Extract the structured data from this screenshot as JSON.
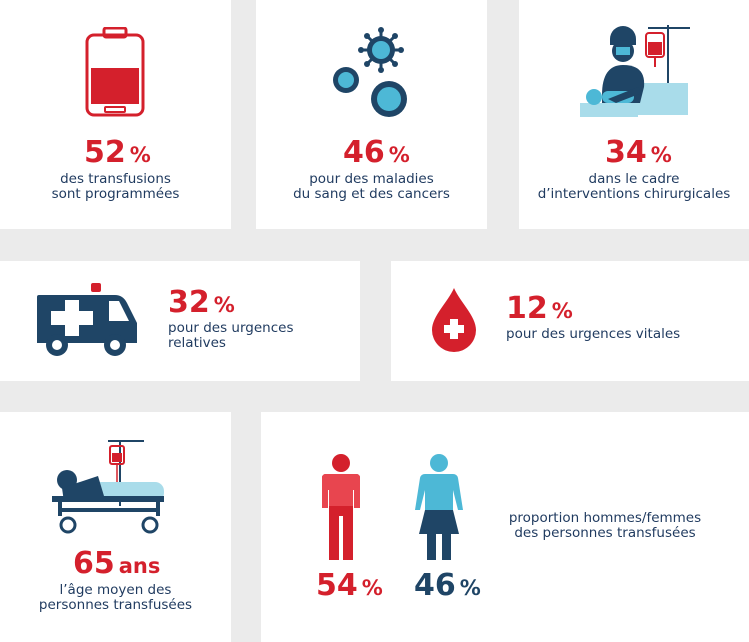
{
  "colors": {
    "red": "#d4202c",
    "navy": "#1f4566",
    "cyan": "#4db8d6",
    "background": "#ebebeb",
    "card": "#ffffff"
  },
  "stats": {
    "programmed": {
      "value": "52",
      "unit": "%",
      "line1": "des transfusions",
      "line2": "sont programmées",
      "icon": "blood-bag-icon"
    },
    "blood_cancer": {
      "value": "46",
      "unit": "%",
      "line1": "pour des maladies",
      "line2": "du sang et des cancers",
      "icon": "cells-icon"
    },
    "surgery": {
      "value": "34",
      "unit": "%",
      "line1": "dans le cadre",
      "line2": "d’interventions chirurgicales",
      "icon": "surgeon-icon"
    },
    "relative_emergency": {
      "value": "32",
      "unit": "%",
      "line1": "pour des urgences",
      "line2": "relatives",
      "icon": "ambulance-icon"
    },
    "vital_emergency": {
      "value": "12",
      "unit": "%",
      "line1": "pour des urgences vitales",
      "icon": "blood-drop-cross-icon"
    },
    "average_age": {
      "value": "65",
      "unit": "ans",
      "line1": "l’âge moyen des",
      "line2": "personnes transfusées",
      "icon": "patient-bed-icon"
    },
    "gender": {
      "men_value": "54",
      "men_unit": "%",
      "women_value": "46",
      "women_unit": "%",
      "line1": "proportion hommes/femmes",
      "line2": "des personnes transfusées",
      "icons": [
        "man-icon",
        "woman-icon"
      ]
    }
  }
}
